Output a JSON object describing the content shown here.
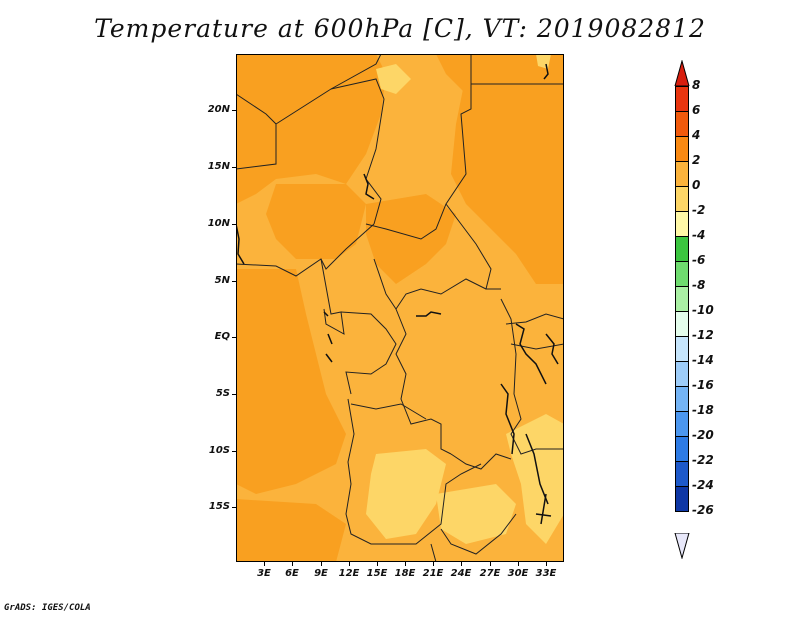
{
  "title": "Temperature at 600hPa [C], VT: 2019082812",
  "credit": "GrADS: IGES/COLA",
  "map": {
    "lat_labels": [
      "20N",
      "15N",
      "10N",
      "5N",
      "EQ",
      "5S",
      "10S",
      "15S"
    ],
    "lon_labels": [
      "3E",
      "6E",
      "9E",
      "12E",
      "15E",
      "18E",
      "21E",
      "24E",
      "27E",
      "30E",
      "33E"
    ],
    "base_fill_color": "#fbb33c"
  },
  "colorbar": {
    "labels": [
      "8",
      "6",
      "4",
      "2",
      "0",
      "-2",
      "-4",
      "-6",
      "-8",
      "-10",
      "-12",
      "-14",
      "-16",
      "-18",
      "-20",
      "-22",
      "-24",
      "-26"
    ],
    "colors": [
      "#e9350f",
      "#f15a0c",
      "#f98912",
      "#fbb33c",
      "#fdd667",
      "#fff8a7",
      "#3bc53f",
      "#6fdc6f",
      "#aaf0a4",
      "#e4fdec",
      "#c6e5fc",
      "#9ecdf9",
      "#74b4f5",
      "#4c97ef",
      "#2d7be5",
      "#1d59ca",
      "#0e37a5",
      "#0a0a6e",
      "#000050"
    ],
    "top_arrow_color": "#d81e0e",
    "bottom_arrow_color": "#e8e8fa"
  }
}
